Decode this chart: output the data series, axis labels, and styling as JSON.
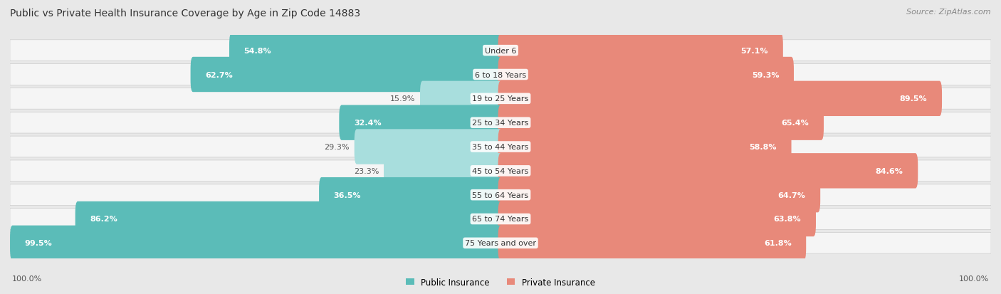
{
  "title": "Public vs Private Health Insurance Coverage by Age in Zip Code 14883",
  "source": "Source: ZipAtlas.com",
  "categories": [
    "Under 6",
    "6 to 18 Years",
    "19 to 25 Years",
    "25 to 34 Years",
    "35 to 44 Years",
    "45 to 54 Years",
    "55 to 64 Years",
    "65 to 74 Years",
    "75 Years and over"
  ],
  "public_values": [
    54.8,
    62.7,
    15.9,
    32.4,
    29.3,
    23.3,
    36.5,
    86.2,
    99.5
  ],
  "private_values": [
    57.1,
    59.3,
    89.5,
    65.4,
    58.8,
    84.6,
    64.7,
    63.8,
    61.8
  ],
  "public_color": "#5bbcb8",
  "private_color": "#e8897a",
  "public_color_light": "#a8dedd",
  "private_color_light": "#f2b9ae",
  "bg_color": "#e8e8e8",
  "row_bg_color": "#f5f5f5",
  "title_fontsize": 10,
  "source_fontsize": 8,
  "label_fontsize": 8,
  "category_fontsize": 8,
  "legend_fontsize": 8.5,
  "axis_label_fontsize": 8,
  "max_value": 100.0,
  "pub_label_inside_threshold": 30,
  "priv_label_inside_threshold": 30
}
